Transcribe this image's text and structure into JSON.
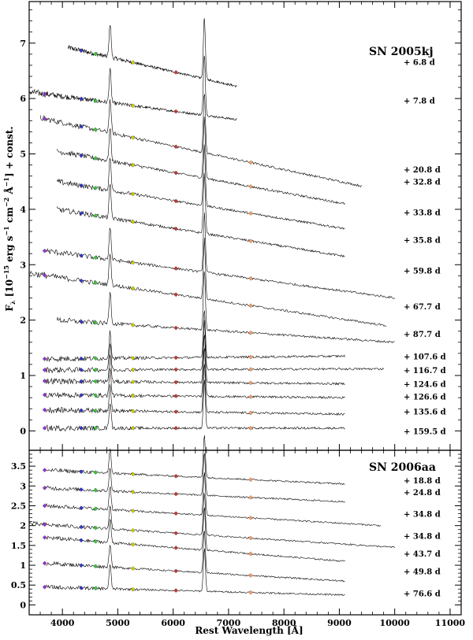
{
  "chart_data": [
    {
      "type": "line",
      "title": "SN 2005kj",
      "ylabel": "F_λ [10^-15 erg s^-1 cm^-2 Å^-1] + const.",
      "xlim": [
        3400,
        11200
      ],
      "ylim": [
        -0.35,
        7.75
      ],
      "x_ticks": [
        4000,
        5000,
        6000,
        7000,
        8000,
        9000,
        10000,
        11000
      ],
      "y_ticks": [
        0,
        1,
        2,
        3,
        4,
        5,
        6,
        7
      ],
      "series": [
        {
          "name": "+ 6.8 d",
          "x_start": 4100,
          "x_end": 7150,
          "offset": 6.66,
          "continuum_start": 6.92,
          "continuum_end": 6.22
        },
        {
          "name": "+ 7.8 d",
          "x_start": 3400,
          "x_end": 7150,
          "offset": 5.97,
          "continuum_start": 6.12,
          "continuum_end": 5.62
        },
        {
          "name": "+ 20.8 d",
          "x_start": 3600,
          "x_end": 9400,
          "offset": 4.72,
          "continuum_start": 5.65,
          "continuum_end": 4.42
        },
        {
          "name": "+ 32.8 d",
          "x_start": 3900,
          "x_end": 9100,
          "offset": 4.5,
          "continuum_start": 5.05,
          "continuum_end": 4.1
        },
        {
          "name": "+ 33.8 d",
          "x_start": 3900,
          "x_end": 9100,
          "offset": 3.95,
          "continuum_start": 4.5,
          "continuum_end": 3.65
        },
        {
          "name": "+ 35.8 d",
          "x_start": 3900,
          "x_end": 9100,
          "offset": 3.45,
          "continuum_start": 4.0,
          "continuum_end": 3.15
        },
        {
          "name": "+ 59.8 d",
          "x_start": 3700,
          "x_end": 10000,
          "offset": 2.9,
          "continuum_start": 3.25,
          "continuum_end": 2.4
        },
        {
          "name": "+ 67.7 d",
          "x_start": 3400,
          "x_end": 9850,
          "offset": 2.25,
          "continuum_start": 2.85,
          "continuum_end": 1.9
        },
        {
          "name": "+ 87.7 d",
          "x_start": 3900,
          "x_end": 10000,
          "offset": 1.75,
          "continuum_start": 2.0,
          "continuum_end": 1.6
        },
        {
          "name": "+ 107.6 d",
          "x_start": 3700,
          "x_end": 9100,
          "offset": 1.35,
          "continuum_start": 1.3,
          "continuum_end": 1.35
        },
        {
          "name": "+ 116.7 d",
          "x_start": 3700,
          "x_end": 9800,
          "offset": 1.1,
          "continuum_start": 1.1,
          "continuum_end": 1.12
        },
        {
          "name": "+ 124.6 d",
          "x_start": 3700,
          "x_end": 9100,
          "offset": 0.85,
          "continuum_start": 0.9,
          "continuum_end": 0.85
        },
        {
          "name": "+ 126.6 d",
          "x_start": 3700,
          "x_end": 9100,
          "offset": 0.62,
          "continuum_start": 0.65,
          "continuum_end": 0.6
        },
        {
          "name": "+ 135.6 d",
          "x_start": 3700,
          "x_end": 9100,
          "offset": 0.35,
          "continuum_start": 0.38,
          "continuum_end": 0.3
        },
        {
          "name": "+ 159.5 d",
          "x_start": 3700,
          "x_end": 9100,
          "offset": 0.0,
          "continuum_start": 0.05,
          "continuum_end": 0.05
        }
      ],
      "emission_lines": [
        4861,
        6563
      ],
      "markers": [
        {
          "color": "#9933cc",
          "x": 3680
        },
        {
          "color": "#3333cc",
          "x": 4340
        },
        {
          "color": "#33cc33",
          "x": 4600
        },
        {
          "color": "#cccc00",
          "x": 5275
        },
        {
          "color": "#cc3333",
          "x": 6050
        },
        {
          "color": "#ff9966",
          "x": 7400
        }
      ]
    },
    {
      "type": "line",
      "title": "SN 2006aa",
      "xlabel": "Rest Wavelength [Å]",
      "xlim": [
        3400,
        11200
      ],
      "ylim": [
        -0.25,
        3.9
      ],
      "x_ticks": [
        4000,
        5000,
        6000,
        7000,
        8000,
        9000,
        10000,
        11000
      ],
      "y_ticks": [
        0,
        0.5,
        1,
        1.5,
        2,
        2.5,
        3,
        3.5
      ],
      "series": [
        {
          "name": "+ 18.8 d",
          "x_start": 3700,
          "x_end": 9100,
          "offset": 3.15,
          "continuum_start": 3.4,
          "continuum_end": 3.05
        },
        {
          "name": "+ 24.8 d",
          "x_start": 3700,
          "x_end": 9100,
          "offset": 2.85,
          "continuum_start": 2.95,
          "continuum_end": 2.6
        },
        {
          "name": "+ 34.8 d",
          "x_start": 3700,
          "x_end": 9750,
          "offset": 2.3,
          "continuum_start": 2.5,
          "continuum_end": 2.0
        },
        {
          "name": "+ 34.8 d",
          "x_start": 3400,
          "x_end": 10000,
          "offset": 1.75,
          "continuum_start": 2.05,
          "continuum_end": 1.45
        },
        {
          "name": "+ 43.7 d",
          "x_start": 3700,
          "x_end": 9100,
          "offset": 1.3,
          "continuum_start": 1.7,
          "continuum_end": 1.1
        },
        {
          "name": "+ 49.8 d",
          "x_start": 3700,
          "x_end": 9100,
          "offset": 0.85,
          "continuum_start": 1.05,
          "continuum_end": 0.6
        },
        {
          "name": "+ 76.6 d",
          "x_start": 3700,
          "x_end": 9100,
          "offset": 0.3,
          "continuum_start": 0.45,
          "continuum_end": 0.25
        }
      ],
      "emission_lines": [
        4861,
        6563
      ],
      "markers": [
        {
          "color": "#9933cc",
          "x": 3680
        },
        {
          "color": "#3333cc",
          "x": 4340
        },
        {
          "color": "#33cc33",
          "x": 4600
        },
        {
          "color": "#cccc00",
          "x": 5275
        },
        {
          "color": "#cc3333",
          "x": 6050
        },
        {
          "color": "#ff9966",
          "x": 7400
        }
      ]
    }
  ]
}
